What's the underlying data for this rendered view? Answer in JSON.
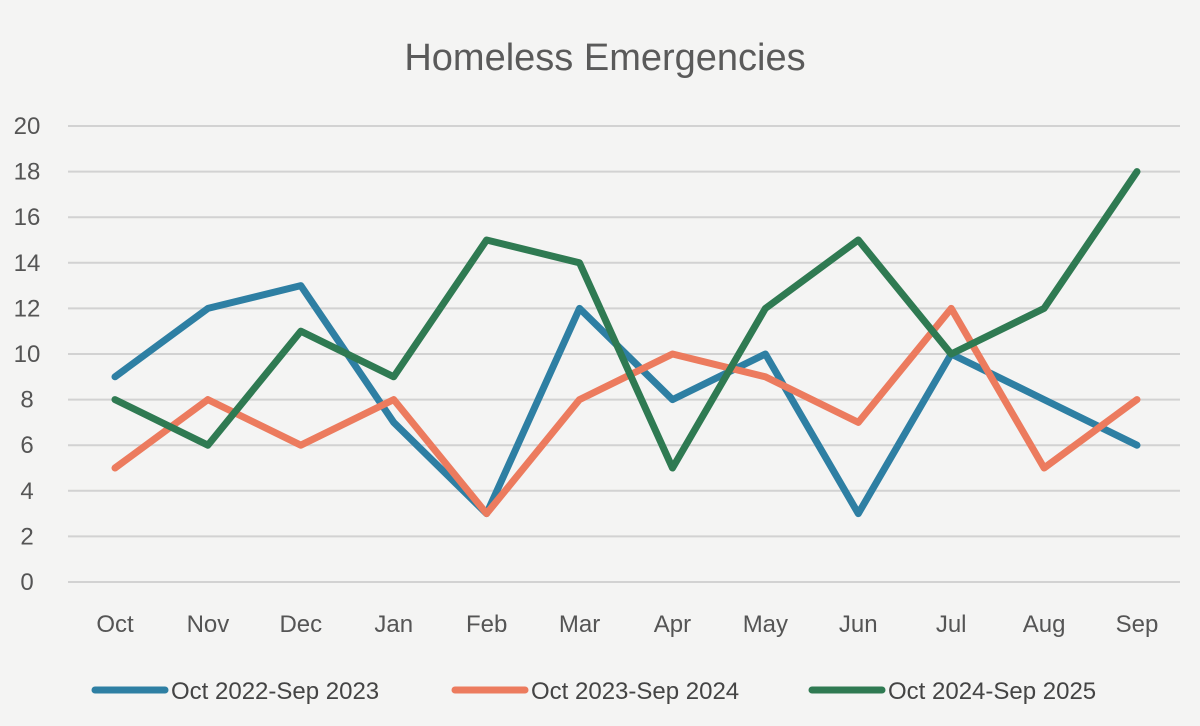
{
  "chart_data": {
    "type": "line",
    "title": "Homeless Emergencies",
    "categories": [
      "Oct",
      "Nov",
      "Dec",
      "Jan",
      "Feb",
      "Mar",
      "Apr",
      "May",
      "Jun",
      "Jul",
      "Aug",
      "Sep"
    ],
    "yticks": [
      "0",
      "2",
      "4",
      "6",
      "8",
      "10",
      "12",
      "14",
      "16",
      "18",
      "20"
    ],
    "ylim": [
      0,
      20
    ],
    "xlabel": "",
    "ylabel": "",
    "grid": true,
    "legend_position": "bottom",
    "series": [
      {
        "name": "Oct 2022-Sep 2023",
        "color": "#2e7fa3",
        "values": [
          9,
          12,
          13,
          7,
          3,
          12,
          8,
          10,
          3,
          10,
          8,
          6
        ]
      },
      {
        "name": "Oct 2023-Sep 2024",
        "color": "#ec7b5e",
        "values": [
          5,
          8,
          6,
          8,
          3,
          8,
          10,
          9,
          7,
          12,
          5,
          8
        ]
      },
      {
        "name": "Oct 2024-Sep 2025",
        "color": "#2f7a52",
        "values": [
          8,
          6,
          11,
          9,
          15,
          14,
          5,
          12,
          15,
          10,
          12,
          18
        ]
      }
    ]
  }
}
